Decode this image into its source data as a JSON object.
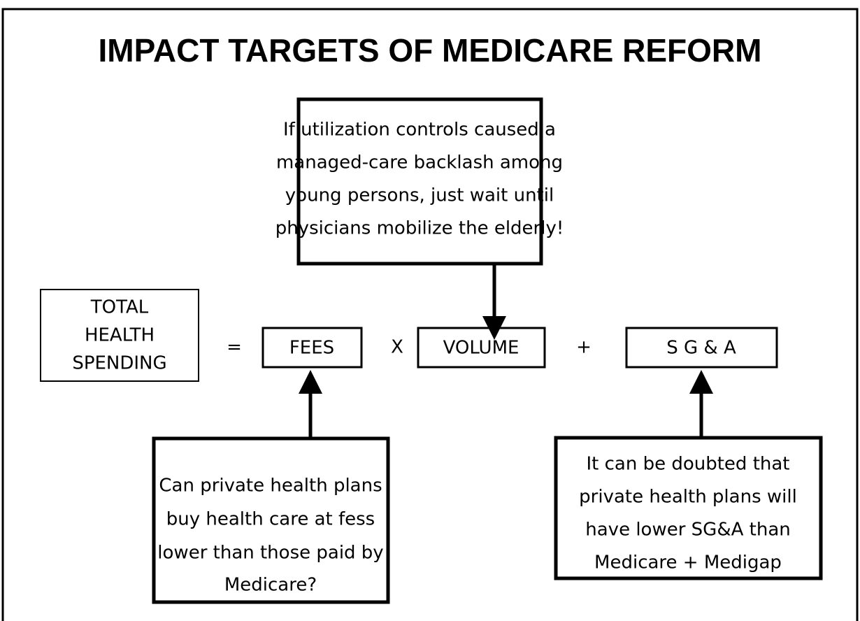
{
  "title": "IMPACT TARGETS OF MEDICARE REFORM",
  "top_note": {
    "lines": [
      "If utilization controls caused a",
      "managed-care backlash among",
      "young persons, just wait until",
      "physicians mobilize the elderly!"
    ]
  },
  "equation": {
    "total": {
      "lines": [
        "TOTAL",
        "HEALTH",
        "SPENDING"
      ]
    },
    "equals": "=",
    "fees": "FEES",
    "times": "X",
    "volume": "VOLUME",
    "plus": "+",
    "sga": "S G & A"
  },
  "fees_note": {
    "lines": [
      "Can private health plans",
      "buy health care at fess",
      "lower than those paid by",
      "Medicare?"
    ]
  },
  "sga_note": {
    "lines": [
      "It can be doubted that",
      "private health plans will",
      "have lower SG&A than",
      "Medicare + Medigap"
    ]
  }
}
